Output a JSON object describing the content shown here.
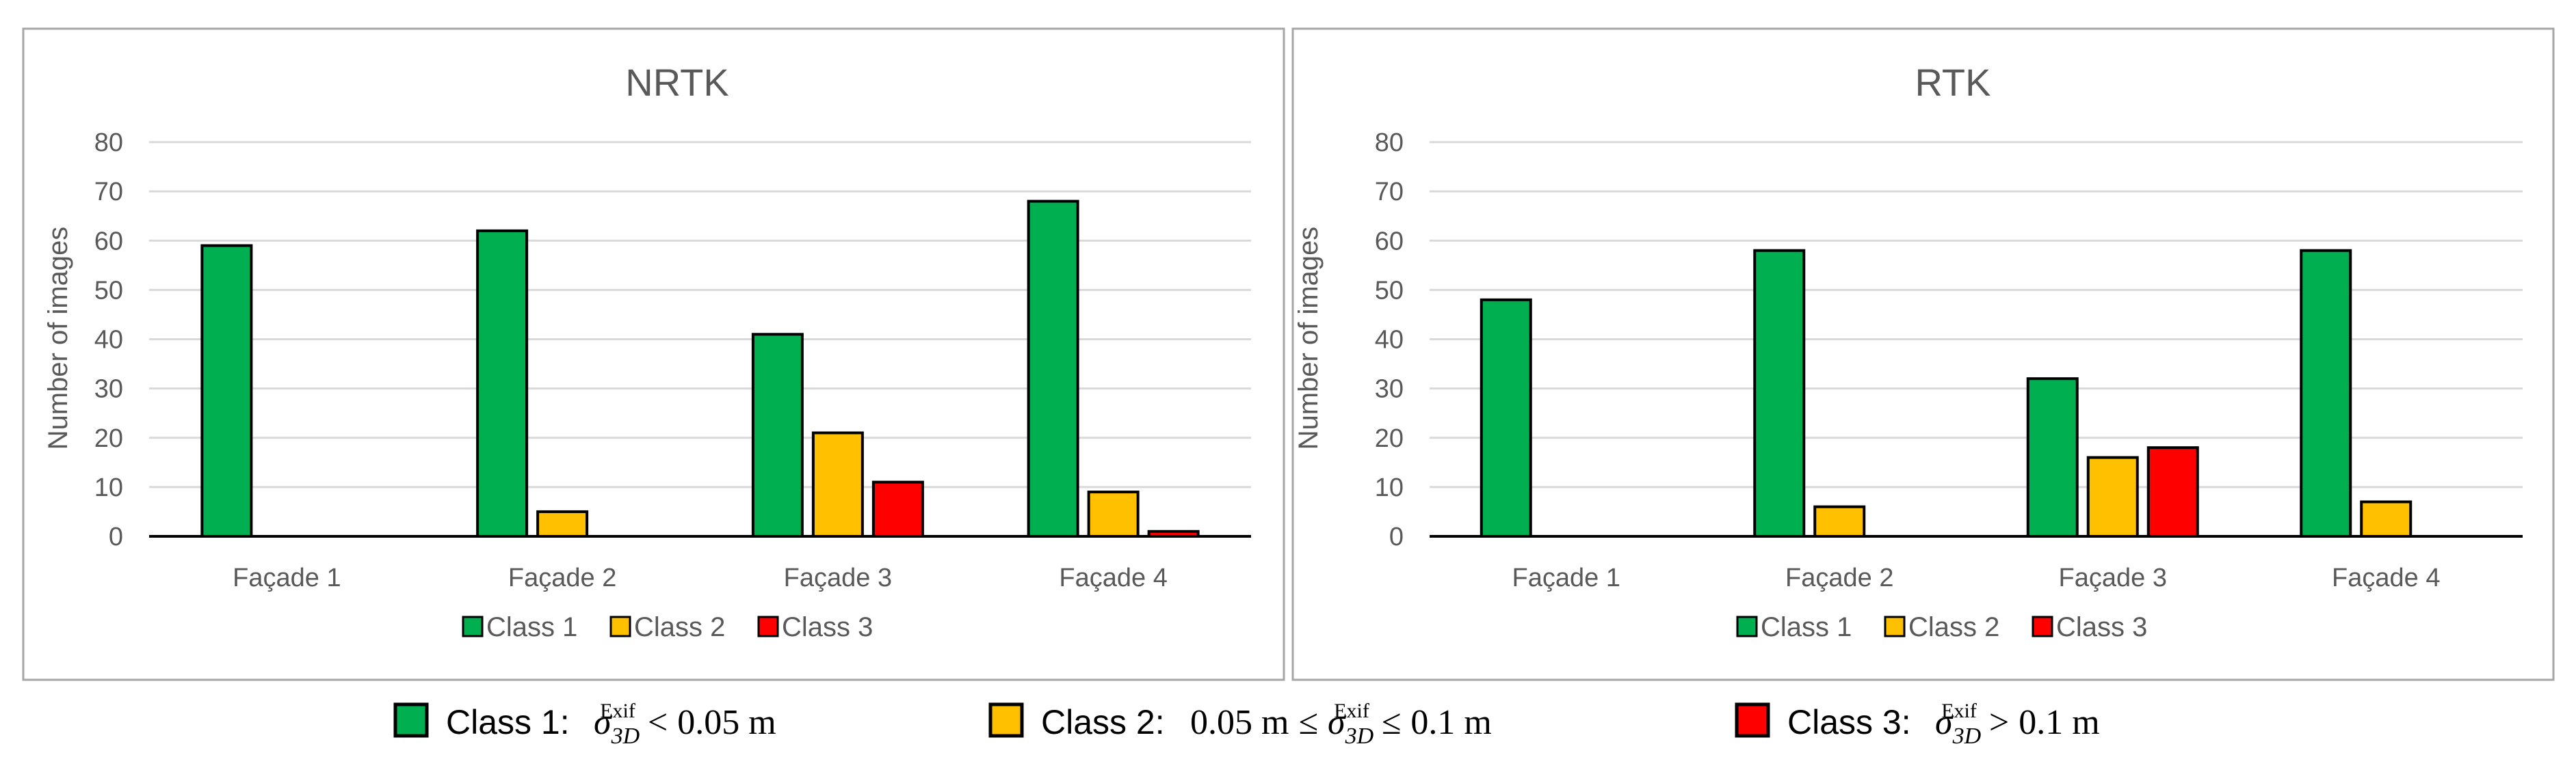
{
  "chart_data": [
    {
      "type": "bar",
      "title": "NRTK",
      "ylabel": "Number of images",
      "xlabel": "",
      "ylim": [
        0,
        80
      ],
      "yticks": [
        0,
        10,
        20,
        30,
        40,
        50,
        60,
        70,
        80
      ],
      "grid": true,
      "legend_position": "bottom",
      "categories": [
        "Façade 1",
        "Façade 2",
        "Façade 3",
        "Façade 4"
      ],
      "series": [
        {
          "name": "Class 1",
          "color": "#00B050",
          "values": [
            59,
            62,
            41,
            68
          ]
        },
        {
          "name": "Class 2",
          "color": "#FFC000",
          "values": [
            0,
            5,
            21,
            9
          ]
        },
        {
          "name": "Class 3",
          "color": "#FF0000",
          "values": [
            0,
            0,
            11,
            1
          ]
        }
      ]
    },
    {
      "type": "bar",
      "title": "RTK",
      "ylabel": "Number of images",
      "xlabel": "",
      "ylim": [
        0,
        80
      ],
      "yticks": [
        0,
        10,
        20,
        30,
        40,
        50,
        60,
        70,
        80
      ],
      "grid": true,
      "legend_position": "bottom",
      "categories": [
        "Façade 1",
        "Façade 2",
        "Façade 3",
        "Façade 4"
      ],
      "series": [
        {
          "name": "Class 1",
          "color": "#00B050",
          "values": [
            48,
            58,
            32,
            58
          ]
        },
        {
          "name": "Class 2",
          "color": "#FFC000",
          "values": [
            0,
            6,
            16,
            7
          ]
        },
        {
          "name": "Class 3",
          "color": "#FF0000",
          "values": [
            0,
            0,
            18,
            0
          ]
        }
      ]
    }
  ],
  "bottom_legend": [
    {
      "label": "Class 1:",
      "color": "#00B050",
      "condition_left": "",
      "op_left": "",
      "op_right": "<",
      "condition_right": "0.05 m"
    },
    {
      "label": "Class 2:",
      "color": "#FFC000",
      "condition_left": "0.05 m",
      "op_left": "≤",
      "op_right": "≤",
      "condition_right": "0.1 m"
    },
    {
      "label": "Class 3:",
      "color": "#FF0000",
      "condition_left": "",
      "op_left": "",
      "op_right": ">",
      "condition_right": "0.1 m"
    }
  ],
  "sigma_symbol": {
    "base": "σ",
    "subscript": "3D",
    "superscript": "Exif"
  }
}
